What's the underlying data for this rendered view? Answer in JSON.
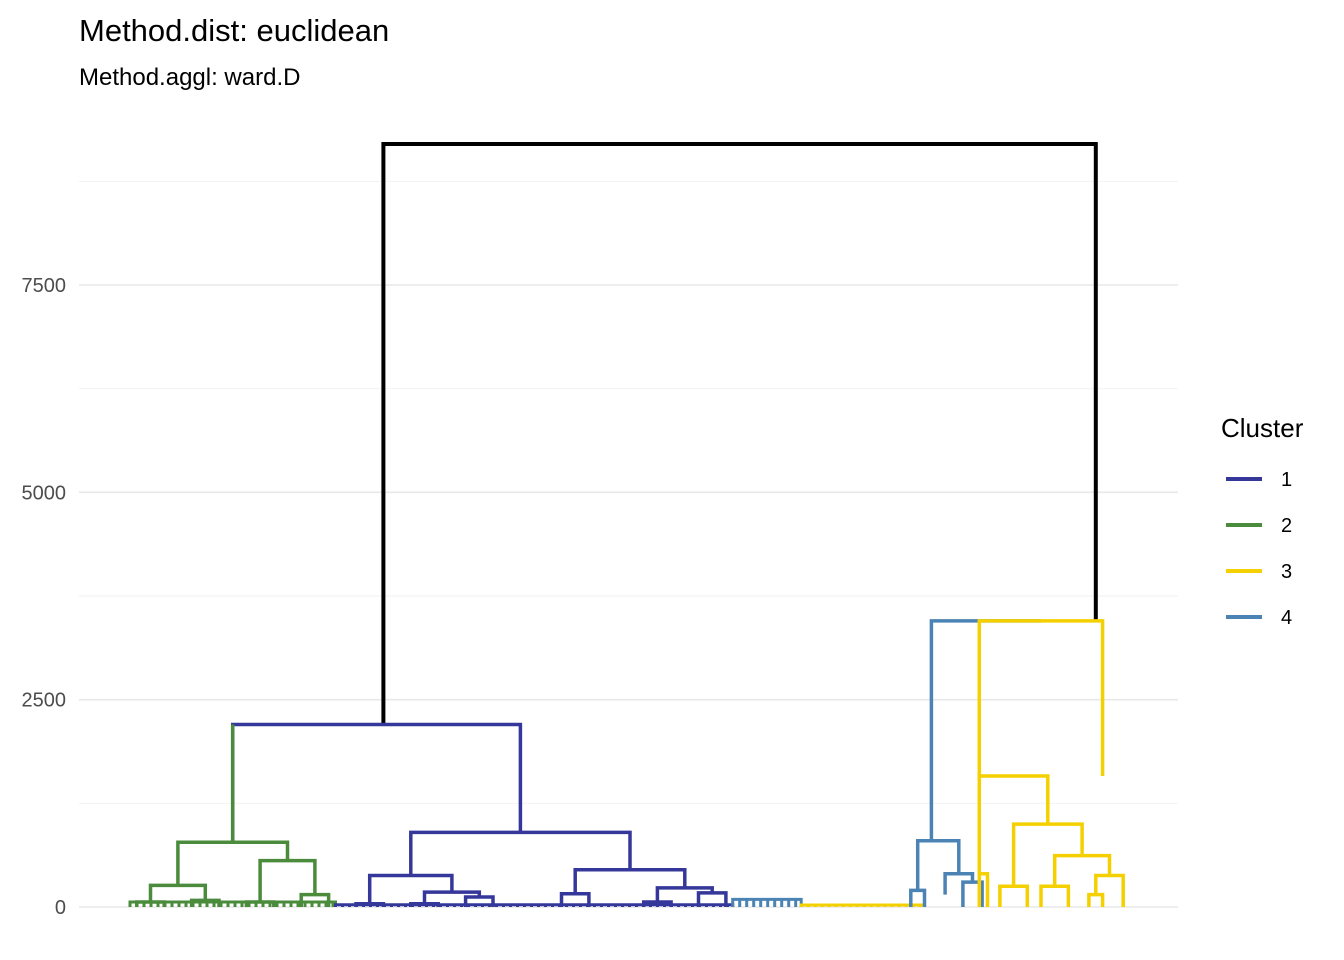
{
  "chart_data": {
    "type": "dendrogram",
    "title": "Method.dist: euclidean",
    "subtitle": "Method.aggl: ward.D",
    "xlabel": "",
    "ylabel": "",
    "ylim": [
      -50,
      9800
    ],
    "yticks": [
      0,
      2500,
      5000,
      7500
    ],
    "grid": true,
    "legend": {
      "title": "Cluster",
      "position": "right",
      "items": [
        {
          "label": "1",
          "color": "#35389a"
        },
        {
          "label": "2",
          "color": "#4a8b3c"
        },
        {
          "label": "3",
          "color": "#f5d000"
        },
        {
          "label": "4",
          "color": "#4b84b4"
        }
      ]
    },
    "root_color": "#000000",
    "merges": [
      {
        "left": 18.5,
        "right": 70.5,
        "height": 9200,
        "color": "root",
        "left_top": 2200,
        "right_top": 3450
      },
      {
        "left": 7.5,
        "right": 28.5,
        "height": 2200,
        "color": "1",
        "left_top": 780,
        "right_top": 900
      },
      {
        "left": 7.5,
        "right": 7.5,
        "height": 2200,
        "color": "2",
        "left_top": 780,
        "right_top": 2200
      },
      {
        "left": 3.5,
        "right": 11.5,
        "height": 780,
        "color": "2",
        "left_top": 260,
        "right_top": 560
      },
      {
        "left": 1.5,
        "right": 5.5,
        "height": 260,
        "color": "2",
        "left_top": 60,
        "right_top": 80
      },
      {
        "left": 0.5,
        "right": 2.5,
        "height": 60,
        "color": "2",
        "left_top": 0,
        "right_top": 0
      },
      {
        "left": 4.5,
        "right": 6.5,
        "height": 80,
        "color": "2",
        "left_top": 0,
        "right_top": 0
      },
      {
        "left": 9.5,
        "right": 13.5,
        "height": 560,
        "color": "2",
        "left_top": 60,
        "right_top": 150
      },
      {
        "left": 8.5,
        "right": 10.5,
        "height": 60,
        "color": "2",
        "left_top": 0,
        "right_top": 0
      },
      {
        "left": 12.5,
        "right": 14.5,
        "height": 150,
        "color": "2",
        "left_top": 0,
        "right_top": 0
      },
      {
        "left": 20.5,
        "right": 36.5,
        "height": 900,
        "color": "1",
        "left_top": 380,
        "right_top": 450
      },
      {
        "left": 17.5,
        "right": 23.5,
        "height": 380,
        "color": "1",
        "left_top": 40,
        "right_top": 180
      },
      {
        "left": 16.5,
        "right": 18.5,
        "height": 40,
        "color": "1",
        "left_top": 0,
        "right_top": 0
      },
      {
        "left": 21.5,
        "right": 25.5,
        "height": 180,
        "color": "1",
        "left_top": 40,
        "right_top": 120
      },
      {
        "left": 20.5,
        "right": 22.5,
        "height": 40,
        "color": "1",
        "left_top": 0,
        "right_top": 0
      },
      {
        "left": 24.5,
        "right": 26.5,
        "height": 120,
        "color": "1",
        "left_top": 0,
        "right_top": 0
      },
      {
        "left": 32.5,
        "right": 40.5,
        "height": 450,
        "color": "1",
        "left_top": 160,
        "right_top": 230
      },
      {
        "left": 31.5,
        "right": 33.5,
        "height": 160,
        "color": "1",
        "left_top": 0,
        "right_top": 0
      },
      {
        "left": 38.5,
        "right": 42.5,
        "height": 230,
        "color": "1",
        "left_top": 60,
        "right_top": 170
      },
      {
        "left": 37.5,
        "right": 39.5,
        "height": 60,
        "color": "1",
        "left_top": 0,
        "right_top": 0
      },
      {
        "left": 41.5,
        "right": 43.5,
        "height": 170,
        "color": "1",
        "left_top": 0,
        "right_top": 0
      },
      {
        "left": 58.5,
        "right": 66.5,
        "height": 3450,
        "color": "4",
        "left_top": 800,
        "right_top": 3450
      },
      {
        "left": 57.5,
        "right": 60.5,
        "height": 800,
        "color": "4",
        "left_top": 200,
        "right_top": 400
      },
      {
        "left": 57.0,
        "right": 58.0,
        "height": 200,
        "color": "4",
        "left_top": 0,
        "right_top": 0
      },
      {
        "left": 59.5,
        "right": 61.5,
        "height": 400,
        "color": "4",
        "left_top": 150,
        "right_top": 300
      },
      {
        "left": 60.8,
        "right": 62.2,
        "height": 300,
        "color": "4",
        "left_top": 0,
        "right_top": 0
      },
      {
        "left": 66.5,
        "right": 66.5,
        "height": 3450,
        "color": "3",
        "left_top": 3450,
        "right_top": 3450
      },
      {
        "left": 62.0,
        "right": 71.0,
        "height": 3450,
        "color": "3",
        "left_top": 1580,
        "right_top": 1580
      },
      {
        "left": 62.0,
        "right": 67.0,
        "height": 1580,
        "color": "3",
        "left_top": 400,
        "right_top": 1000
      },
      {
        "left": 62.0,
        "right": 62.6,
        "height": 400,
        "color": "3",
        "left_top": 0,
        "right_top": 0
      },
      {
        "left": 64.5,
        "right": 69.5,
        "height": 1000,
        "color": "3",
        "left_top": 250,
        "right_top": 620
      },
      {
        "left": 63.5,
        "right": 65.5,
        "height": 250,
        "color": "3",
        "left_top": 0,
        "right_top": 0
      },
      {
        "left": 67.5,
        "right": 71.5,
        "height": 620,
        "color": "3",
        "left_top": 250,
        "right_top": 380
      },
      {
        "left": 66.5,
        "right": 68.5,
        "height": 250,
        "color": "3",
        "left_top": 0,
        "right_top": 0
      },
      {
        "left": 70.5,
        "right": 72.5,
        "height": 380,
        "color": "3",
        "left_top": 150,
        "right_top": 0
      },
      {
        "left": 70.0,
        "right": 71.0,
        "height": 150,
        "color": "3",
        "left_top": 0,
        "right_top": 0
      }
    ]
  }
}
